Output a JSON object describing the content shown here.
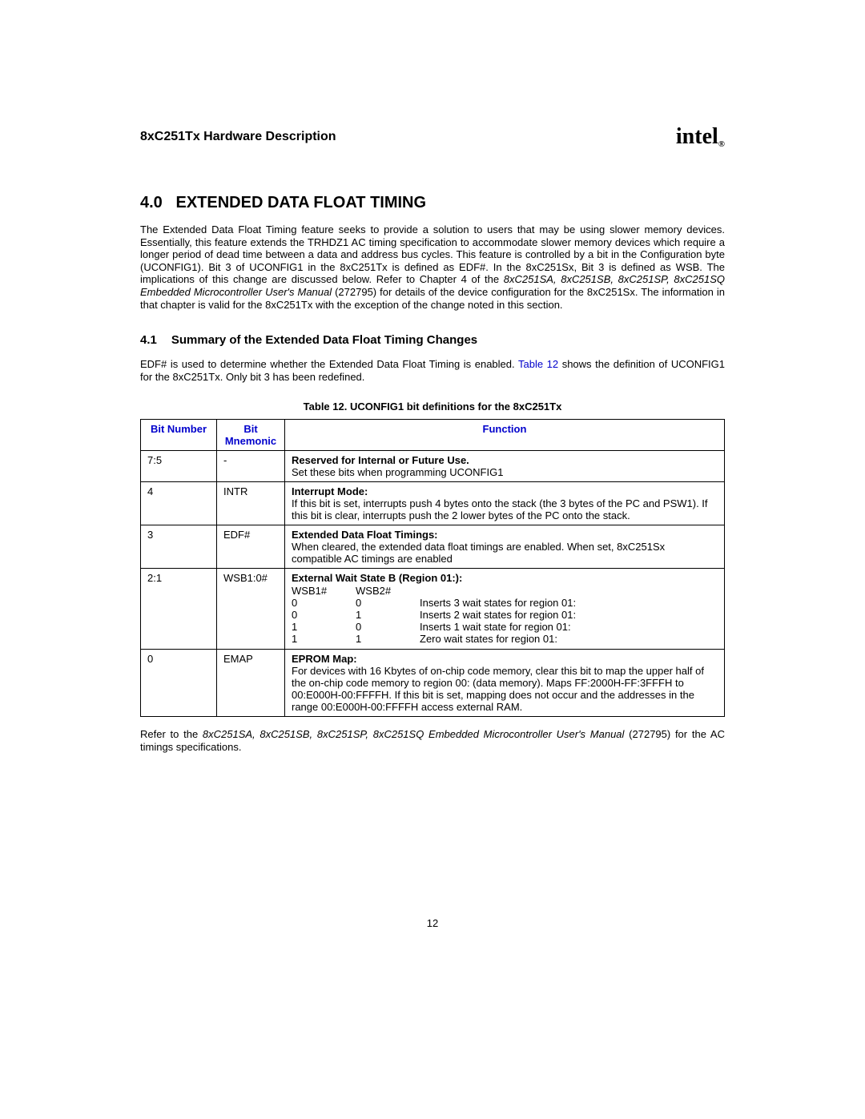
{
  "header": {
    "doc_title": "8xC251Tx Hardware Description",
    "logo_text": "intel",
    "logo_sub": "®"
  },
  "section": {
    "number": "4.0",
    "title": "EXTENDED DATA FLOAT TIMING",
    "body_html": "The Extended Data Float Timing feature seeks to provide a solution to users that may be using slower memory devices. Essentially, this feature extends the TRHDZ1 AC timing specification to accommodate slower memory devices which require a longer period of dead time between a data and address bus cycles. This feature is controlled by a bit in the Configuration byte (UCONFIG1). Bit 3 of UCONFIG1 in the 8xC251Tx is defined as EDF#. In the 8xC251Sx, Bit 3 is defined as WSB. The implications of this change are discussed below. Refer to Chapter 4 of the <span class=\"italic\">8xC251SA, 8xC251SB, 8xC251SP, 8xC251SQ Embedded Microcontroller User's Manual</span> (272795) for details of the device configuration for the 8xC251Sx. The information in that chapter is valid for the 8xC251Tx with the exception of the change noted in this section."
  },
  "subsection": {
    "number": "4.1",
    "title": "Summary of the Extended Data Float Timing Changes",
    "para_pre": "EDF# is used to determine whether the Extended Data Float Timing is enabled. ",
    "para_link": "Table 12",
    "para_post": " shows the definition of UCONFIG1 for the 8xC251Tx. Only bit 3 has been redefined."
  },
  "table": {
    "caption": "Table 12. UCONFIG1 bit definitions for the 8xC251Tx",
    "headers": {
      "bit_number": "Bit Number",
      "bit_mnemonic": "Bit Mnemonic",
      "function": "Function"
    },
    "rows": [
      {
        "bitnum": "7:5",
        "mnem": "-",
        "fn_title": "Reserved for Internal or Future Use.",
        "fn_body": "Set these bits when programming UCONFIG1"
      },
      {
        "bitnum": "4",
        "mnem": "INTR",
        "fn_title": "Interrupt Mode:",
        "fn_body": "If this bit is set, interrupts push 4 bytes onto the stack (the 3 bytes of the PC and PSW1). If this bit is clear, interrupts push the 2 lower bytes of the PC onto the stack."
      },
      {
        "bitnum": "3",
        "mnem": "EDF#",
        "fn_title": "Extended Data Float Timings:",
        "fn_body": "When cleared, the extended data float timings are enabled. When set, 8xC251Sx compatible AC timings are enabled"
      },
      {
        "bitnum": "2:1",
        "mnem": "WSB1:0#",
        "fn_title": "External Wait State B (Region 01:):",
        "wait": {
          "h1": "WSB1#",
          "h2": "WSB2#",
          "r0a": "0",
          "r0b": "0",
          "r0c": "Inserts 3 wait states for region 01:",
          "r1a": "0",
          "r1b": "1",
          "r1c": "Inserts 2 wait states for region 01:",
          "r2a": "1",
          "r2b": "0",
          "r2c": "Inserts 1 wait state for region 01:",
          "r3a": "1",
          "r3b": "1",
          "r3c": "Zero wait states for region 01:"
        }
      },
      {
        "bitnum": "0",
        "mnem": "EMAP",
        "fn_title": "EPROM Map:",
        "fn_body": "For devices with 16 Kbytes of on-chip code memory, clear this bit to map the upper half of the on-chip code memory to region 00: (data memory). Maps FF:2000H-FF:3FFFH to 00:E000H-00:FFFFH. If this bit is set, mapping does not occur and the addresses in the range 00:E000H-00:FFFFH access external RAM."
      }
    ]
  },
  "footer_para_html": "Refer to the <span class=\"italic\">8xC251SA, 8xC251SB, 8xC251SP, 8xC251SQ Embedded Microcontroller User's Manual</span> (272795) for the AC timings specifications.",
  "page_number": "12"
}
